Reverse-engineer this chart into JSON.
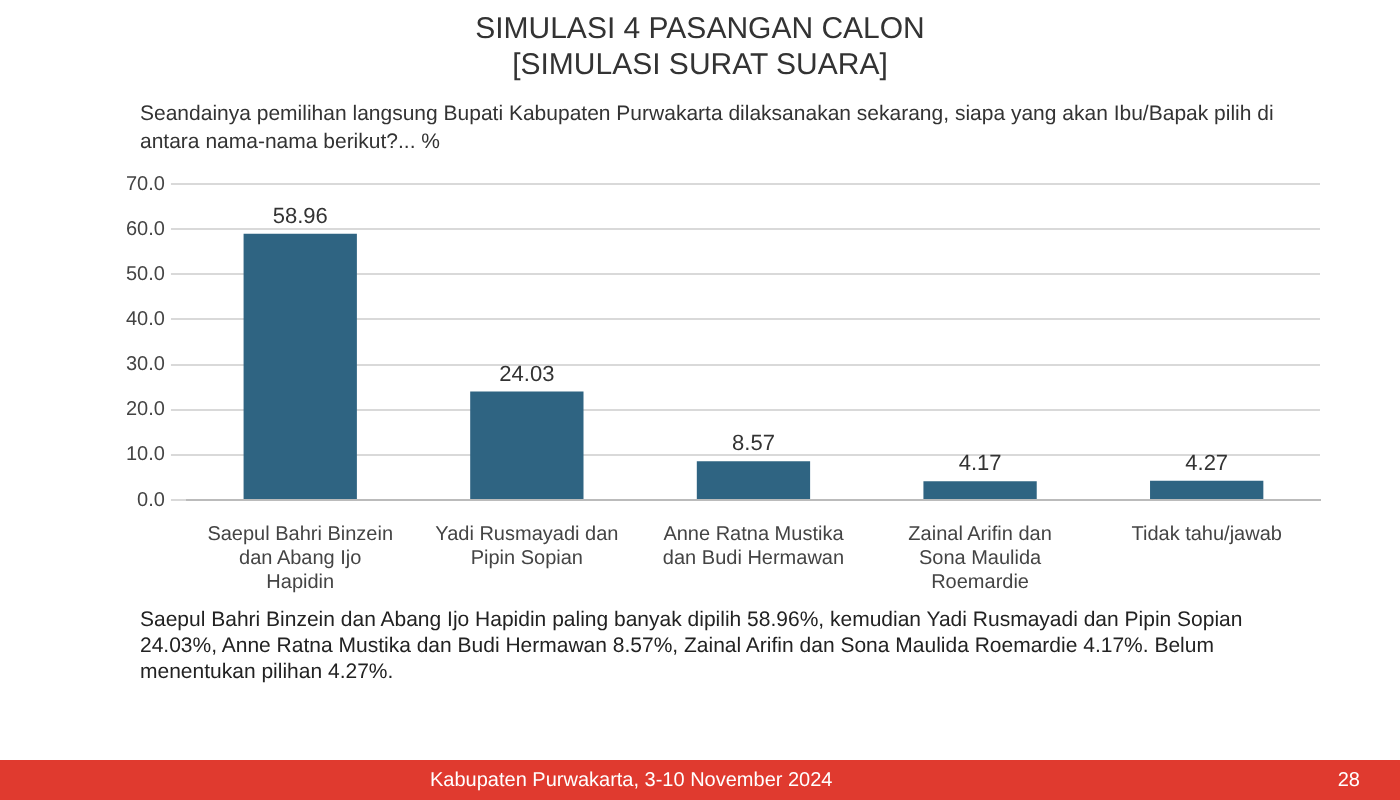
{
  "chart_data": {
    "type": "bar",
    "title": "SIMULASI 4 PASANGAN CALON",
    "subtitle": "[SIMULASI SURAT SUARA]",
    "annotations": [
      "Seandainya pemilihan langsung Bupati Kabupaten Purwakarta dilaksanakan sekarang, siapa yang akan Ibu/Bapak pilih di antara nama-nama berikut?... %",
      "Saepul Bahri Binzein dan Abang Ijo Hapidin paling banyak dipilih 58.96%, kemudian Yadi Rusmayadi dan Pipin Sopian 24.03%, Anne Ratna Mustika dan Budi Hermawan 8.57%, Zainal Arifin dan Sona Maulida Roemardie 4.17%. Belum menentukan pilihan 4.27%.",
      "Kabupaten Purwakarta, 3-10 November 2024",
      "28"
    ],
    "categories": [
      "Saepul Bahri Binzein dan Abang Ijo Hapidin",
      "Yadi Rusmayadi dan Pipin Sopian",
      "Anne Ratna Mustika dan Budi Hermawan",
      "Zainal Arifin dan Sona Maulida Roemardie",
      "Tidak tahu/jawab"
    ],
    "values": [
      58.96,
      24.03,
      8.57,
      4.17,
      4.27
    ],
    "color": "#2f6482",
    "ylim": [
      0,
      70
    ],
    "yticks": [
      {
        "value": 0,
        "label": "0.0"
      },
      {
        "value": 10,
        "label": "10.0"
      },
      {
        "value": 20,
        "label": "20.0"
      },
      {
        "value": 30,
        "label": "30.0"
      },
      {
        "value": 40,
        "label": "40.0"
      },
      {
        "value": 50,
        "label": "50.0"
      },
      {
        "value": 60,
        "label": "60.0"
      },
      {
        "value": 70,
        "label": "70.0"
      }
    ],
    "grid": "y",
    "legend": false,
    "data_labels": true
  }
}
